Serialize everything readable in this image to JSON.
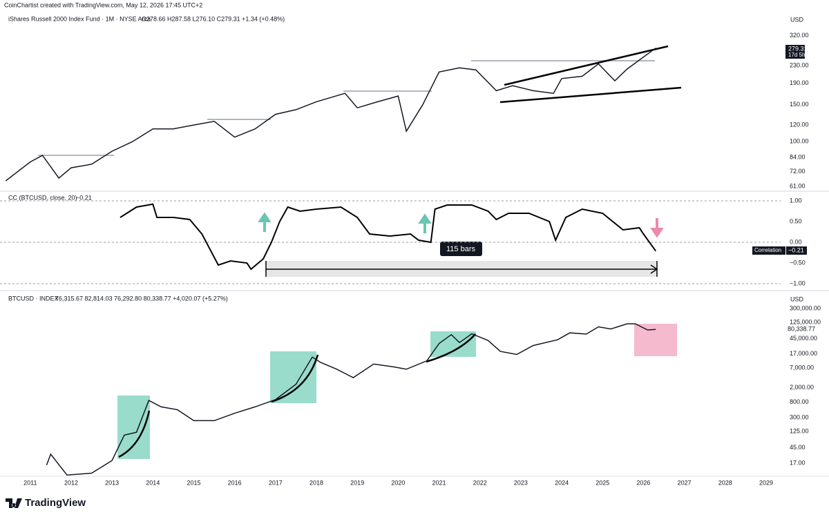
{
  "header": {
    "attribution": "CoinChartist created with TradingView.com, May 12, 2026 17:45 UTC+2",
    "logo": "TradingView"
  },
  "chart_data": [
    {
      "type": "line",
      "title": "iShares Russell 2000 Index Fund · 1M · NYSE Arca",
      "ohlc": "O278.66 H287.58 L276.10 C279.31 +1.34 (+0.48%)",
      "axis_label": "USD",
      "price_tag": "279.31",
      "countdown": "17d 5h",
      "log_scale": true,
      "color": "#131722",
      "x": [
        2010.4,
        2011.0,
        2011.3,
        2011.7,
        2012.0,
        2012.5,
        2013.0,
        2013.5,
        2014.0,
        2014.5,
        2015.0,
        2015.5,
        2016.0,
        2016.5,
        2017.0,
        2017.5,
        2018.0,
        2018.7,
        2019.0,
        2019.5,
        2020.0,
        2020.2,
        2020.6,
        2021.0,
        2021.5,
        2021.9,
        2022.4,
        2022.8,
        2023.3,
        2023.8,
        2024.0,
        2024.5,
        2024.9,
        2025.3,
        2025.6,
        2025.9,
        2026.3
      ],
      "values": [
        65,
        80,
        86,
        67,
        75,
        78,
        90,
        100,
        115,
        115,
        120,
        125,
        105,
        115,
        135,
        142,
        155,
        170,
        145,
        155,
        165,
        112,
        150,
        215,
        225,
        220,
        175,
        185,
        175,
        170,
        200,
        205,
        235,
        195,
        222,
        245,
        279.31
      ],
      "xlim": [
        2010.26,
        2029.44
      ],
      "ylim": [
        58,
        350
      ],
      "yticks": [
        {
          "value": 61,
          "label": "61.00"
        },
        {
          "value": 72,
          "label": "72.00"
        },
        {
          "value": 84,
          "label": "84.00"
        },
        {
          "value": 100,
          "label": "100.00"
        },
        {
          "value": 120,
          "label": "120.00"
        },
        {
          "value": 150,
          "label": "150.00"
        },
        {
          "value": 190,
          "label": "190.00"
        },
        {
          "value": 230,
          "label": "230.00"
        },
        {
          "value": 320,
          "label": "320.00"
        }
      ]
    },
    {
      "type": "line",
      "title": "CC (BTCUSD, close, 20)",
      "last_label": "−0.21",
      "tag_name": "Correlation",
      "tag_value": "−0.21",
      "measure_label": "115 bars",
      "log_scale": false,
      "color": "#000000",
      "x": [
        2013.2,
        2013.6,
        2014.0,
        2014.1,
        2014.5,
        2014.9,
        2015.2,
        2015.6,
        2015.9,
        2016.3,
        2016.4,
        2016.7,
        2016.9,
        2017.1,
        2017.3,
        2017.6,
        2018.0,
        2018.6,
        2019.0,
        2019.3,
        2019.8,
        2020.3,
        2020.5,
        2020.8,
        2020.9,
        2021.2,
        2021.8,
        2022.2,
        2022.4,
        2022.7,
        2023.2,
        2023.7,
        2023.85,
        2024.1,
        2024.5,
        2025.0,
        2025.5,
        2025.9,
        2026.0,
        2026.3
      ],
      "values": [
        0.6,
        0.85,
        0.92,
        0.6,
        0.6,
        0.55,
        0.2,
        -0.55,
        -0.45,
        -0.5,
        -0.65,
        -0.4,
        0,
        0.5,
        0.85,
        0.75,
        0.8,
        0.85,
        0.6,
        0.2,
        0.15,
        0.2,
        0.05,
        0,
        0.8,
        0.9,
        0.9,
        0.75,
        0.55,
        0.7,
        0.7,
        0.5,
        0.05,
        0.6,
        0.8,
        0.7,
        0.3,
        0.35,
        0.2,
        -0.21
      ],
      "xlim": [
        2010.26,
        2029.44
      ],
      "ylim": [
        -1.15,
        1.15
      ],
      "yticks": [
        {
          "value": 1,
          "label": "1.00"
        },
        {
          "value": 0.5,
          "label": "0.50"
        },
        {
          "value": 0,
          "label": "0.00"
        },
        {
          "value": -0.5,
          "label": "−0.50"
        },
        {
          "value": -1,
          "label": "−1.00"
        }
      ]
    },
    {
      "type": "line",
      "title": "BTCUSD · INDEX",
      "ohlc": "76,315.67 82,814.03 76,292.80 80,338.77 +4,020.07 (+5.27%)",
      "axis_label": "USD",
      "price_tag": "80,338.77",
      "log_scale": true,
      "color": "#131722",
      "x": [
        2011.4,
        2011.5,
        2011.9,
        2012.5,
        2013.0,
        2013.3,
        2013.6,
        2013.9,
        2014.2,
        2014.6,
        2015.0,
        2015.5,
        2016.0,
        2016.5,
        2017.0,
        2017.5,
        2017.9,
        2018.1,
        2018.5,
        2018.9,
        2019.4,
        2019.9,
        2020.2,
        2020.7,
        2021.0,
        2021.3,
        2021.5,
        2021.8,
        2022.2,
        2022.5,
        2022.9,
        2023.3,
        2023.9,
        2024.2,
        2024.6,
        2024.9,
        2025.2,
        2025.6,
        2025.8,
        2026.1,
        2026.3
      ],
      "values": [
        15,
        30,
        8,
        9,
        20,
        100,
        120,
        900,
        600,
        500,
        250,
        250,
        400,
        600,
        950,
        2500,
        14000,
        10000,
        6500,
        3800,
        9000,
        7500,
        6500,
        11000,
        33000,
        58000,
        35000,
        61000,
        40000,
        20000,
        16500,
        29000,
        42000,
        65000,
        60000,
        95000,
        83000,
        115000,
        115000,
        78000,
        80338.77
      ],
      "xlim": [
        2010.26,
        2029.44
      ],
      "ylim": [
        7.4,
        410000
      ],
      "xticks": [
        2011,
        2012,
        2013,
        2014,
        2015,
        2016,
        2017,
        2018,
        2019,
        2020,
        2021,
        2022,
        2023,
        2024,
        2025,
        2026,
        2027,
        2028,
        2029
      ],
      "yticks": [
        {
          "value": 17,
          "label": "17.00"
        },
        {
          "value": 45,
          "label": "45.00"
        },
        {
          "value": 125,
          "label": "125.00"
        },
        {
          "value": 300,
          "label": "300.00"
        },
        {
          "value": 800,
          "label": "800.00"
        },
        {
          "value": 2000,
          "label": "2,000.00"
        },
        {
          "value": 7000,
          "label": "7,000.00"
        },
        {
          "value": 17000,
          "label": "17,000.00"
        },
        {
          "value": 45000,
          "label": "45,000.00"
        },
        {
          "value": 125000,
          "label": "125,000.00"
        },
        {
          "value": 300000,
          "label": "300,000.00"
        }
      ]
    }
  ]
}
